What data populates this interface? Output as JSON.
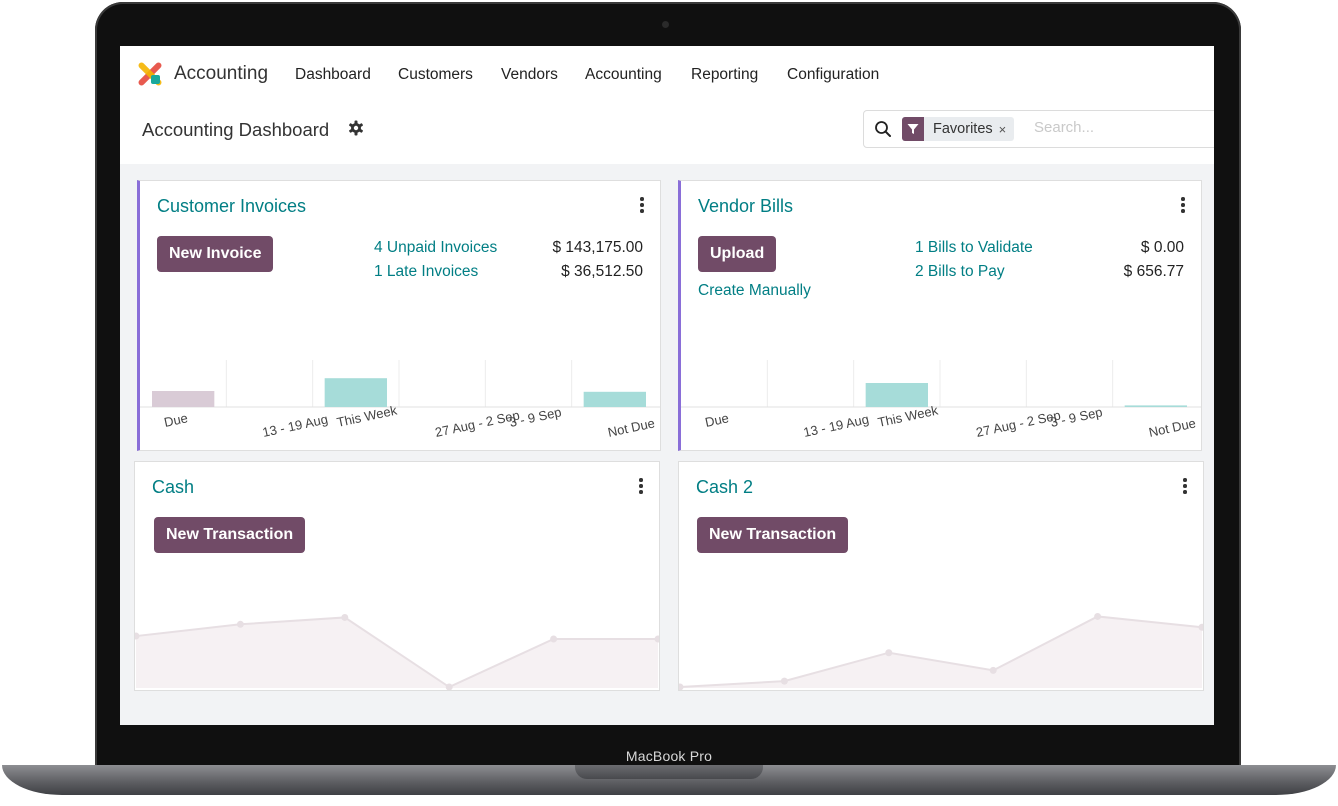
{
  "device": {
    "label": "MacBook Pro"
  },
  "nav": {
    "app_name": "Accounting",
    "items": [
      "Dashboard",
      "Customers",
      "Vendors",
      "Accounting",
      "Reporting",
      "Configuration"
    ]
  },
  "control": {
    "title": "Accounting Dashboard",
    "search": {
      "facet": "Favorites",
      "facet_remove": "×",
      "placeholder": "Search..."
    }
  },
  "colors": {
    "primary": "#714b67",
    "link": "#017e84",
    "accent": "#8a6ed8",
    "bar_past": "#d9cbd6",
    "bar_future": "#a6dcd9"
  },
  "cards": {
    "customer": {
      "title": "Customer Invoices",
      "button": "New Invoice",
      "stats": [
        {
          "label": "4 Unpaid Invoices",
          "amount": "$ 143,175.00"
        },
        {
          "label": "1 Late Invoices",
          "amount": "$ 36,512.50"
        }
      ]
    },
    "vendor": {
      "title": "Vendor Bills",
      "button": "Upload",
      "secondary": "Create Manually",
      "stats": [
        {
          "label": "1 Bills to Validate",
          "amount": "$ 0.00"
        },
        {
          "label": "2 Bills to Pay",
          "amount": "$ 656.77"
        }
      ]
    },
    "cash": {
      "title": "Cash",
      "button": "New Transaction"
    },
    "cash2": {
      "title": "Cash 2",
      "button": "New Transaction"
    }
  },
  "chart_data": [
    {
      "type": "bar",
      "categories": [
        "Due",
        "13 - 19 Aug",
        "This Week",
        "27 Aug - 2 Sep",
        "3 - 9 Sep",
        "Not Due"
      ],
      "values": [
        0.4,
        0,
        0.72,
        0,
        0,
        0.38
      ],
      "ylim": [
        0,
        1
      ]
    },
    {
      "type": "bar",
      "categories": [
        "Due",
        "13 - 19 Aug",
        "This Week",
        "27 Aug - 2 Sep",
        "3 - 9 Sep",
        "Not Due"
      ],
      "values": [
        0,
        0,
        0.6,
        0,
        0,
        0.04
      ],
      "ylim": [
        0,
        1
      ]
    },
    {
      "type": "line",
      "values": [
        0.53,
        0.65,
        0.72,
        0.01,
        0.5,
        0.5
      ],
      "ylim": [
        0,
        1
      ]
    },
    {
      "type": "line",
      "values": [
        0.01,
        0.07,
        0.36,
        0.18,
        0.73,
        0.62
      ],
      "ylim": [
        0,
        1
      ]
    }
  ]
}
